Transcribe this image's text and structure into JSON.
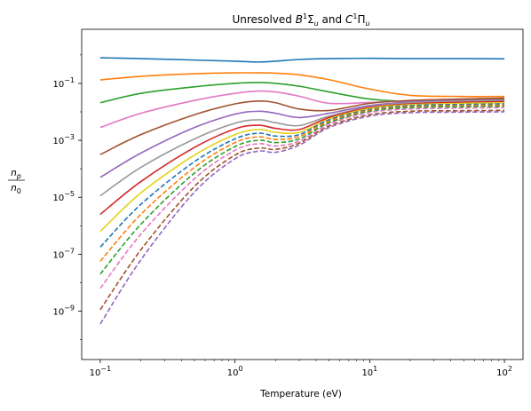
{
  "chart_data": {
    "type": "line",
    "title_parts": {
      "prefix": "Unresolved ",
      "state1": "B",
      "state1_sup": "1",
      "state1_sym": "Σ",
      "state1_sub": "u",
      "joiner": " and ",
      "state2": "C",
      "state2_sup": "1",
      "state2_sym": "Π",
      "state2_sub": "u"
    },
    "xlabel": "Temperature (eV)",
    "ylabel_num": "n",
    "ylabel_num_sub": "p",
    "ylabel_den": "n",
    "ylabel_den_sub": "0",
    "xscale": "log",
    "yscale": "log",
    "xlim": [
      0.1,
      100
    ],
    "ylim_log10": [
      -10.7,
      0.9
    ],
    "grid": false,
    "xticks": [
      {
        "value": 0.1,
        "base": "10",
        "exp": "−1"
      },
      {
        "value": 1,
        "base": "10",
        "exp": "0"
      },
      {
        "value": 10,
        "base": "10",
        "exp": "1"
      },
      {
        "value": 100,
        "base": "10",
        "exp": "2"
      }
    ],
    "yticks": [
      {
        "value": 1e-09,
        "base": "10",
        "exp": "−9"
      },
      {
        "value": 1e-07,
        "base": "10",
        "exp": "−7"
      },
      {
        "value": 1e-05,
        "base": "10",
        "exp": "−5"
      },
      {
        "value": 0.001,
        "base": "10",
        "exp": "−3"
      },
      {
        "value": 0.1,
        "base": "10",
        "exp": "−1"
      }
    ],
    "x": [
      0.1,
      0.2,
      0.5,
      1,
      1.5,
      2,
      3,
      5,
      10,
      20,
      50,
      100
    ],
    "series": [
      {
        "color": "#1f77b4",
        "dash": false,
        "log10_y": [
          -0.1,
          -0.13,
          -0.18,
          -0.22,
          -0.25,
          -0.22,
          -0.16,
          -0.13,
          -0.12,
          -0.13,
          -0.13,
          -0.14
        ]
      },
      {
        "color": "#ff7f0e",
        "dash": false,
        "log10_y": [
          -0.88,
          -0.75,
          -0.66,
          -0.63,
          -0.63,
          -0.64,
          -0.7,
          -0.87,
          -1.2,
          -1.42,
          -1.46,
          -1.46
        ]
      },
      {
        "color": "#2ca02c",
        "dash": false,
        "log10_y": [
          -1.68,
          -1.35,
          -1.12,
          -1.0,
          -0.97,
          -1.0,
          -1.1,
          -1.3,
          -1.55,
          -1.63,
          -1.58,
          -1.55
        ]
      },
      {
        "color": "#e377c2",
        "dash": false,
        "log10_y": [
          -2.55,
          -2.05,
          -1.6,
          -1.35,
          -1.27,
          -1.3,
          -1.45,
          -1.7,
          -1.67,
          -1.6,
          -1.55,
          -1.52
        ]
      },
      {
        "color": "#a0522d",
        "dash": false,
        "log10_y": [
          -3.5,
          -2.8,
          -2.1,
          -1.72,
          -1.62,
          -1.68,
          -1.9,
          -1.95,
          -1.7,
          -1.6,
          -1.55,
          -1.52
        ]
      },
      {
        "color": "#9467bd",
        "dash": false,
        "log10_y": [
          -4.3,
          -3.45,
          -2.55,
          -2.08,
          -1.98,
          -2.05,
          -2.2,
          -2.05,
          -1.78,
          -1.65,
          -1.6,
          -1.58
        ]
      },
      {
        "color": "#999999",
        "dash": false,
        "log10_y": [
          -4.95,
          -3.95,
          -2.95,
          -2.4,
          -2.28,
          -2.38,
          -2.48,
          -2.15,
          -1.82,
          -1.68,
          -1.62,
          -1.6
        ]
      },
      {
        "color": "#d62728",
        "dash": false,
        "log10_y": [
          -5.6,
          -4.45,
          -3.25,
          -2.6,
          -2.47,
          -2.58,
          -2.62,
          -2.2,
          -1.85,
          -1.72,
          -1.66,
          -1.64
        ]
      },
      {
        "color": "#e4d11b",
        "dash": false,
        "log10_y": [
          -6.2,
          -4.85,
          -3.52,
          -2.8,
          -2.62,
          -2.72,
          -2.72,
          -2.25,
          -1.88,
          -1.75,
          -1.7,
          -1.68
        ]
      },
      {
        "color": "#1f77b4",
        "dash": true,
        "log10_y": [
          -6.75,
          -5.25,
          -3.75,
          -2.95,
          -2.75,
          -2.85,
          -2.8,
          -2.28,
          -1.92,
          -1.78,
          -1.74,
          -1.72
        ]
      },
      {
        "color": "#ff7f0e",
        "dash": true,
        "log10_y": [
          -7.25,
          -5.6,
          -3.95,
          -3.08,
          -2.88,
          -2.97,
          -2.87,
          -2.33,
          -1.95,
          -1.82,
          -1.78,
          -1.76
        ]
      },
      {
        "color": "#2ca02c",
        "dash": true,
        "log10_y": [
          -7.7,
          -5.95,
          -4.15,
          -3.22,
          -3.0,
          -3.08,
          -2.95,
          -2.38,
          -1.98,
          -1.85,
          -1.82,
          -1.8
        ]
      },
      {
        "color": "#e377c2",
        "dash": true,
        "log10_y": [
          -8.2,
          -6.3,
          -4.35,
          -3.35,
          -3.12,
          -3.2,
          -3.03,
          -2.43,
          -2.02,
          -1.9,
          -1.87,
          -1.85
        ]
      },
      {
        "color": "#a0522d",
        "dash": true,
        "log10_y": [
          -8.95,
          -6.85,
          -4.62,
          -3.52,
          -3.27,
          -3.32,
          -3.1,
          -2.5,
          -2.1,
          -1.98,
          -1.96,
          -1.95
        ]
      },
      {
        "color": "#9467bd",
        "dash": true,
        "log10_y": [
          -9.45,
          -7.2,
          -4.82,
          -3.65,
          -3.38,
          -3.42,
          -3.17,
          -2.55,
          -2.15,
          -2.03,
          -2.01,
          -2.0
        ]
      }
    ]
  }
}
